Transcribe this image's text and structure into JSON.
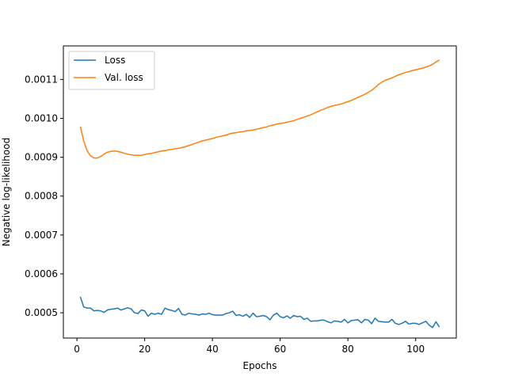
{
  "chart_data": {
    "type": "line",
    "title": "",
    "xlabel": "Epochs",
    "ylabel": "Negative log-likelihood",
    "xlim": [
      -4,
      112
    ],
    "ylim": [
      0.000435,
      0.0011863
    ],
    "xticks": [
      0,
      20,
      40,
      60,
      80,
      100
    ],
    "yticks": [
      0.0005,
      0.0006,
      0.0007,
      0.0008,
      0.0009,
      0.001,
      0.0011
    ],
    "ytick_labels": [
      "0.0005",
      "0.0006",
      "0.0007",
      "0.0008",
      "0.0009",
      "0.0010",
      "0.0011"
    ],
    "grid": false,
    "legend": "top-left",
    "series": [
      {
        "name": "Loss",
        "color": "#1f77b4",
        "x": [
          1,
          2,
          3,
          4,
          5,
          6,
          7,
          8,
          9,
          10,
          11,
          12,
          13,
          14,
          15,
          16,
          17,
          18,
          19,
          20,
          21,
          22,
          23,
          24,
          25,
          26,
          27,
          28,
          29,
          30,
          31,
          32,
          33,
          34,
          35,
          36,
          37,
          38,
          39,
          40,
          41,
          42,
          43,
          44,
          45,
          46,
          47,
          48,
          49,
          50,
          51,
          52,
          53,
          54,
          55,
          56,
          57,
          58,
          59,
          60,
          61,
          62,
          63,
          64,
          65,
          66,
          67,
          68,
          69,
          70,
          71,
          72,
          73,
          74,
          75,
          76,
          77,
          78,
          79,
          80,
          81,
          82,
          83,
          84,
          85,
          86,
          87,
          88,
          89,
          90,
          91,
          92,
          93,
          94,
          95,
          96,
          97,
          98,
          99,
          100,
          101,
          102,
          103,
          104,
          105,
          106,
          107
        ],
        "values": [
          0.000541,
          0.000515,
          0.000512,
          0.000512,
          0.000505,
          0.000506,
          0.000505,
          0.000501,
          0.000507,
          0.000509,
          0.00051,
          0.000512,
          0.000507,
          0.00051,
          0.000513,
          0.00051,
          0.0005,
          0.000498,
          0.000507,
          0.000505,
          0.000491,
          0.000499,
          0.000496,
          0.000499,
          0.000496,
          0.000512,
          0.000508,
          0.000506,
          0.000503,
          0.000511,
          0.000496,
          0.000494,
          0.000499,
          0.000497,
          0.000496,
          0.000494,
          0.000497,
          0.000496,
          0.000499,
          0.000495,
          0.000494,
          0.000494,
          0.000494,
          0.000498,
          0.0005,
          0.000504,
          0.000493,
          0.000495,
          0.000491,
          0.000496,
          0.000488,
          0.000499,
          0.00049,
          0.000491,
          0.000493,
          0.00049,
          0.000482,
          0.000494,
          0.000499,
          0.00049,
          0.000487,
          0.000492,
          0.000486,
          0.000493,
          0.00049,
          0.000491,
          0.000483,
          0.000486,
          0.000478,
          0.000479,
          0.000479,
          0.000481,
          0.000481,
          0.000477,
          0.000474,
          0.000479,
          0.000478,
          0.000476,
          0.000483,
          0.000474,
          0.00048,
          0.000481,
          0.000482,
          0.000474,
          0.000483,
          0.000481,
          0.000472,
          0.000486,
          0.000478,
          0.000477,
          0.000476,
          0.000476,
          0.000483,
          0.000473,
          0.00047,
          0.000473,
          0.000478,
          0.000471,
          0.000473,
          0.000473,
          0.00047,
          0.000474,
          0.000478,
          0.000468,
          0.000462,
          0.000477,
          0.000463
        ]
      },
      {
        "name": "Val. loss",
        "color": "#ff7f0e",
        "x": [
          1,
          2,
          3,
          4,
          5,
          6,
          7,
          8,
          9,
          10,
          11,
          12,
          13,
          14,
          15,
          16,
          17,
          18,
          19,
          20,
          21,
          22,
          23,
          24,
          25,
          26,
          27,
          28,
          29,
          30,
          31,
          32,
          33,
          34,
          35,
          36,
          37,
          38,
          39,
          40,
          41,
          42,
          43,
          44,
          45,
          46,
          47,
          48,
          49,
          50,
          51,
          52,
          53,
          54,
          55,
          56,
          57,
          58,
          59,
          60,
          61,
          62,
          63,
          64,
          65,
          66,
          67,
          68,
          69,
          70,
          71,
          72,
          73,
          74,
          75,
          76,
          77,
          78,
          79,
          80,
          81,
          82,
          83,
          84,
          85,
          86,
          87,
          88,
          89,
          90,
          91,
          92,
          93,
          94,
          95,
          96,
          97,
          98,
          99,
          100,
          101,
          102,
          103,
          104,
          105,
          106,
          107
        ],
        "values": [
          0.000979,
          0.000942,
          0.000917,
          0.000904,
          0.000898,
          0.000898,
          0.000902,
          0.000908,
          0.000913,
          0.000915,
          0.000916,
          0.000915,
          0.000913,
          0.00091,
          0.000908,
          0.000906,
          0.000905,
          0.000905,
          0.000905,
          0.000907,
          0.000909,
          0.00091,
          0.000912,
          0.000914,
          0.000916,
          0.000917,
          0.000919,
          0.00092,
          0.000922,
          0.000923,
          0.000925,
          0.000927,
          0.00093,
          0.000933,
          0.000936,
          0.000939,
          0.000942,
          0.000944,
          0.000946,
          0.000948,
          0.000951,
          0.000953,
          0.000955,
          0.000957,
          0.00096,
          0.000962,
          0.000963,
          0.000965,
          0.000966,
          0.000968,
          0.000969,
          0.00097,
          0.000972,
          0.000974,
          0.000976,
          0.000978,
          0.000981,
          0.000983,
          0.000985,
          0.000987,
          0.000988,
          0.00099,
          0.000992,
          0.000994,
          0.000997,
          0.001,
          0.001003,
          0.001006,
          0.001009,
          0.001013,
          0.001017,
          0.001021,
          0.001024,
          0.001028,
          0.001031,
          0.001033,
          0.001035,
          0.001037,
          0.00104,
          0.001043,
          0.001046,
          0.00105,
          0.001054,
          0.001058,
          0.001062,
          0.001067,
          0.001072,
          0.001079,
          0.001087,
          0.001093,
          0.001098,
          0.001101,
          0.001104,
          0.001108,
          0.001112,
          0.001115,
          0.001118,
          0.00112,
          0.001123,
          0.001125,
          0.001127,
          0.001129,
          0.001132,
          0.001135,
          0.001139,
          0.001145,
          0.00115
        ]
      }
    ]
  }
}
